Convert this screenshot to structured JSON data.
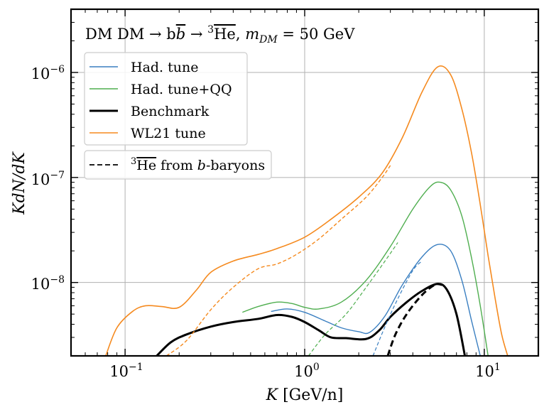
{
  "chart_data": {
    "type": "line",
    "title": "DM DM → bb̄ → ³He̅, m_DM = 50 GeV",
    "title_parts": {
      "prefix": "DM DM → b",
      "bbar": "b",
      "arrow": " → ",
      "mass_number": "3",
      "nucleus": "He",
      "comma": ", ",
      "m_symbol": "m",
      "m_sub": "DM",
      "m_value": " = 50 GeV"
    },
    "xlabel": "K [GeV/n]",
    "xlabel_parts": {
      "var": "K",
      "unit": " [GeV/n]"
    },
    "ylabel": "KdN/dK",
    "x_scale": "log",
    "y_scale": "log",
    "xlim": [
      0.05,
      20
    ],
    "ylim": [
      2e-09,
      4e-06
    ],
    "grid": true,
    "x_ticks": [
      {
        "value": 0.1,
        "base": "10",
        "exp": "−1"
      },
      {
        "value": 1,
        "base": "10",
        "exp": "0"
      },
      {
        "value": 10,
        "base": "10",
        "exp": "1"
      }
    ],
    "y_ticks": [
      {
        "value": 1e-08,
        "base": "10",
        "exp": "−8"
      },
      {
        "value": 1e-07,
        "base": "10",
        "exp": "−7"
      },
      {
        "value": 1e-06,
        "base": "10",
        "exp": "−6"
      }
    ],
    "legend_position": "upper-left",
    "series": [
      {
        "name": "Had. tune",
        "color": "#3a7fc1",
        "dash": "solid",
        "width": 1.4,
        "points": [
          [
            0.65,
            5.3e-09
          ],
          [
            0.8,
            5.6e-09
          ],
          [
            1.0,
            5.2e-09
          ],
          [
            1.3,
            4.3e-09
          ],
          [
            1.6,
            3.7e-09
          ],
          [
            2.0,
            3.4e-09
          ],
          [
            2.3,
            3.35e-09
          ],
          [
            2.8,
            4.8e-09
          ],
          [
            3.5,
            9.5e-09
          ],
          [
            4.5,
            1.75e-08
          ],
          [
            5.5,
            2.3e-08
          ],
          [
            6.5,
            2e-08
          ],
          [
            7.5,
            1.05e-08
          ],
          [
            8.5,
            4.3e-09
          ],
          [
            9.5,
            2e-09
          ]
        ]
      },
      {
        "name": "Had. tune+QQ",
        "color": "#4fae4f",
        "dash": "solid",
        "width": 1.4,
        "points": [
          [
            0.45,
            5.2e-09
          ],
          [
            0.55,
            5.9e-09
          ],
          [
            0.7,
            6.5e-09
          ],
          [
            0.85,
            6.3e-09
          ],
          [
            1.0,
            5.8e-09
          ],
          [
            1.2,
            5.6e-09
          ],
          [
            1.6,
            6.5e-09
          ],
          [
            2.2,
            1.05e-08
          ],
          [
            3.0,
            2.2e-08
          ],
          [
            4.0,
            5e-08
          ],
          [
            5.0,
            8.2e-08
          ],
          [
            5.7,
            9e-08
          ],
          [
            6.5,
            7.6e-08
          ],
          [
            7.5,
            4.3e-08
          ],
          [
            8.5,
            1.7e-08
          ],
          [
            9.5,
            6e-09
          ],
          [
            10.5,
            2e-09
          ]
        ]
      },
      {
        "name": "Benchmark",
        "color": "#000000",
        "dash": "solid",
        "width": 3,
        "points": [
          [
            0.15,
            2e-09
          ],
          [
            0.18,
            2.7e-09
          ],
          [
            0.22,
            3.2e-09
          ],
          [
            0.3,
            3.8e-09
          ],
          [
            0.4,
            4.2e-09
          ],
          [
            0.55,
            4.5e-09
          ],
          [
            0.7,
            4.9e-09
          ],
          [
            0.85,
            4.7e-09
          ],
          [
            1.0,
            4.2e-09
          ],
          [
            1.2,
            3.5e-09
          ],
          [
            1.4,
            3e-09
          ],
          [
            1.7,
            2.95e-09
          ],
          [
            2.2,
            2.9e-09
          ],
          [
            2.6,
            3.5e-09
          ],
          [
            3.0,
            4.7e-09
          ],
          [
            3.7,
            6.5e-09
          ],
          [
            4.5,
            8.3e-09
          ],
          [
            5.5,
            9.7e-09
          ],
          [
            6.2,
            8.5e-09
          ],
          [
            7.0,
            5e-09
          ],
          [
            7.8,
            2e-09
          ]
        ]
      },
      {
        "name": "WL21 tune",
        "color": "#f58a1f",
        "dash": "solid",
        "width": 1.6,
        "points": [
          [
            0.078,
            2e-09
          ],
          [
            0.09,
            3.7e-09
          ],
          [
            0.11,
            5.3e-09
          ],
          [
            0.13,
            6e-09
          ],
          [
            0.16,
            5.9e-09
          ],
          [
            0.2,
            5.8e-09
          ],
          [
            0.25,
            8.5e-09
          ],
          [
            0.3,
            1.25e-08
          ],
          [
            0.4,
            1.6e-08
          ],
          [
            0.55,
            1.85e-08
          ],
          [
            0.7,
            2.1e-08
          ],
          [
            1.0,
            2.7e-08
          ],
          [
            1.4,
            4e-08
          ],
          [
            2.0,
            6.5e-08
          ],
          [
            2.7,
            1.1e-07
          ],
          [
            3.5,
            2.4e-07
          ],
          [
            4.5,
            6.5e-07
          ],
          [
            5.5,
            1.13e-06
          ],
          [
            6.5,
            9.5e-07
          ],
          [
            7.5,
            4.5e-07
          ],
          [
            8.5,
            1.7e-07
          ],
          [
            9.5,
            5.5e-08
          ],
          [
            10.5,
            1.8e-08
          ],
          [
            11.5,
            7e-09
          ],
          [
            12.5,
            3.2e-09
          ],
          [
            13.5,
            2e-09
          ]
        ]
      },
      {
        "name": "WL21 tune (b-baryons)",
        "color": "#f58a1f",
        "dash": "dashed",
        "width": 1.4,
        "points": [
          [
            0.17,
            2e-09
          ],
          [
            0.22,
            2.8e-09
          ],
          [
            0.3,
            5.5e-09
          ],
          [
            0.4,
            9e-09
          ],
          [
            0.55,
            1.35e-08
          ],
          [
            0.7,
            1.5e-08
          ],
          [
            0.9,
            1.85e-08
          ],
          [
            1.2,
            2.6e-08
          ],
          [
            1.6,
            4e-08
          ],
          [
            2.2,
            6.5e-08
          ],
          [
            2.7,
            1e-07
          ],
          [
            3.0,
            1.3e-07
          ]
        ]
      },
      {
        "name": "Had. tune+QQ (b-baryons)",
        "color": "#4fae4f",
        "dash": "dashed",
        "width": 1.2,
        "points": [
          [
            1.05,
            2e-09
          ],
          [
            1.3,
            3.2e-09
          ],
          [
            1.7,
            5e-09
          ],
          [
            2.2,
            9e-09
          ],
          [
            2.8,
            1.6e-08
          ],
          [
            3.3,
            2.4e-08
          ]
        ]
      },
      {
        "name": "Had. tune (b-baryons)",
        "color": "#3a7fc1",
        "dash": "dashed",
        "width": 1.2,
        "points": [
          [
            2.4,
            2e-09
          ],
          [
            2.8,
            3.8e-09
          ],
          [
            3.3,
            7e-09
          ],
          [
            4.0,
            1.3e-08
          ],
          [
            4.5,
            1.6e-08
          ]
        ]
      },
      {
        "name": "Benchmark (b-baryons)",
        "color": "#000000",
        "dash": "dashed",
        "width": 3,
        "points": [
          [
            2.9,
            2e-09
          ],
          [
            3.2,
            3.2e-09
          ],
          [
            3.7,
            5e-09
          ],
          [
            4.5,
            7.6e-09
          ],
          [
            5.3,
            9.5e-09
          ],
          [
            5.8,
            9.5e-09
          ]
        ]
      }
    ],
    "legend": {
      "entries": [
        {
          "label": "Had. tune",
          "color": "#3a7fc1",
          "dash": "solid",
          "width": 1.4
        },
        {
          "label": "Had. tune+QQ",
          "color": "#4fae4f",
          "dash": "solid",
          "width": 1.4
        },
        {
          "label": "Benchmark",
          "color": "#000000",
          "dash": "solid",
          "width": 3
        },
        {
          "label": "WL21 tune",
          "color": "#f58a1f",
          "dash": "solid",
          "width": 1.6
        }
      ],
      "dashed_entry": {
        "label": "³He̅ from b-baryons",
        "mass_number": "3",
        "nucleus": "He",
        "middle": " from ",
        "b": "b",
        "suffix": "-baryons",
        "color": "#000000",
        "dash": "dashed",
        "width": 1.8
      }
    }
  }
}
